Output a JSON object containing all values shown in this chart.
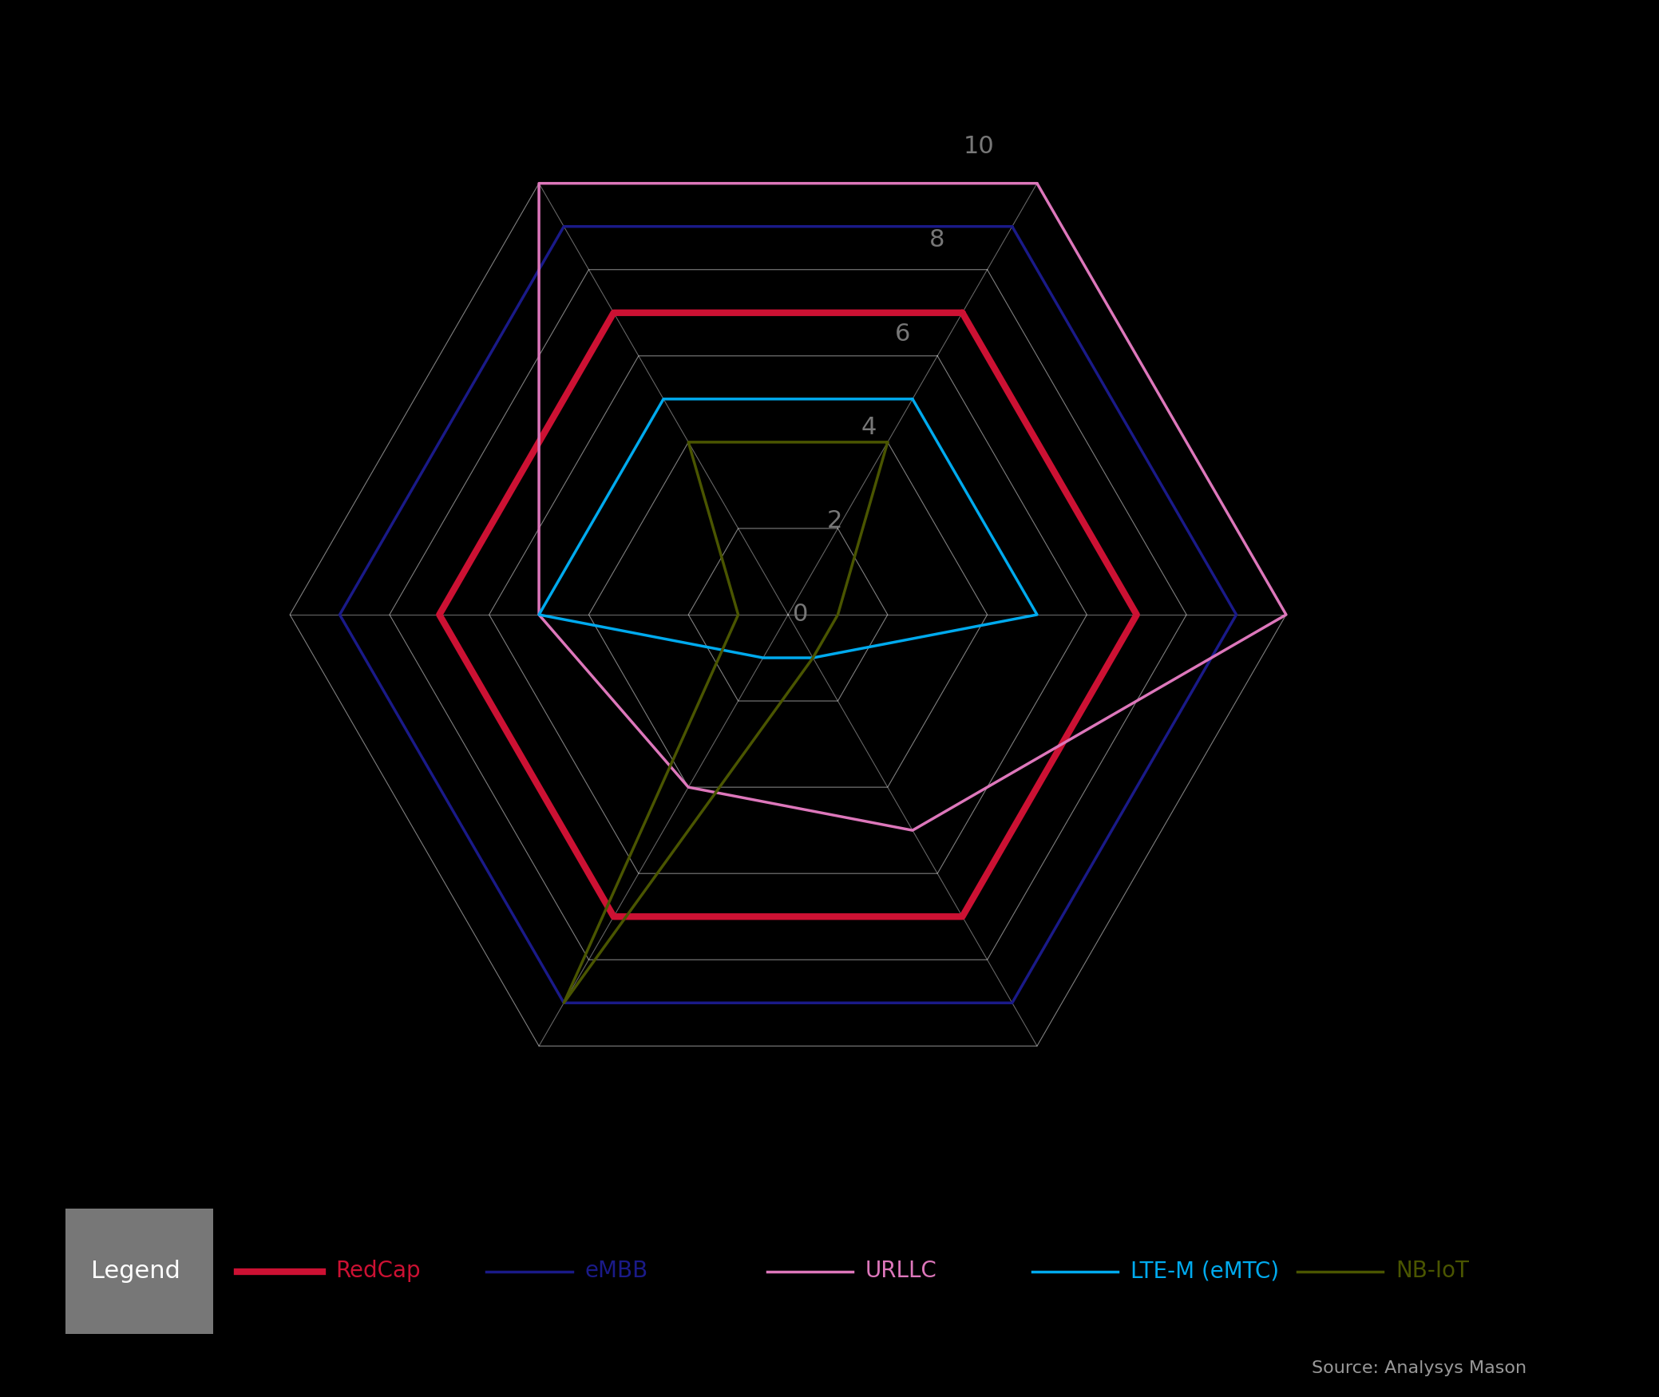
{
  "background_color": "#000000",
  "grid_color": "#ffffff",
  "axis_label_color": "#777777",
  "num_axes": 6,
  "max_val": 10,
  "radii_labels": [
    0,
    2,
    4,
    6,
    8,
    10
  ],
  "series": [
    {
      "name": "RedCap",
      "color": "#cc1133",
      "linewidth": 6,
      "values": [
        7,
        7,
        7,
        7,
        7,
        7
      ]
    },
    {
      "name": "eMBB",
      "color": "#1a1a88",
      "linewidth": 2.5,
      "values": [
        9,
        9,
        9,
        9,
        9,
        9
      ]
    },
    {
      "name": "URLLC",
      "color": "#dd77bb",
      "linewidth": 2.5,
      "values": [
        10,
        10,
        5,
        4,
        5,
        10
      ]
    },
    {
      "name": "LTE-M (eMTC)",
      "color": "#00aaee",
      "linewidth": 2.5,
      "values": [
        5,
        5,
        1,
        1,
        5,
        5
      ]
    },
    {
      "name": "NB-IoT",
      "color": "#4a5500",
      "linewidth": 2.5,
      "values": [
        4,
        1,
        1,
        9,
        1,
        4
      ]
    }
  ],
  "legend_bg": "#777777",
  "source_text": "Source: Analysys Mason",
  "source_color": "#999999",
  "figsize": [
    20.78,
    17.5
  ],
  "dpi": 100
}
